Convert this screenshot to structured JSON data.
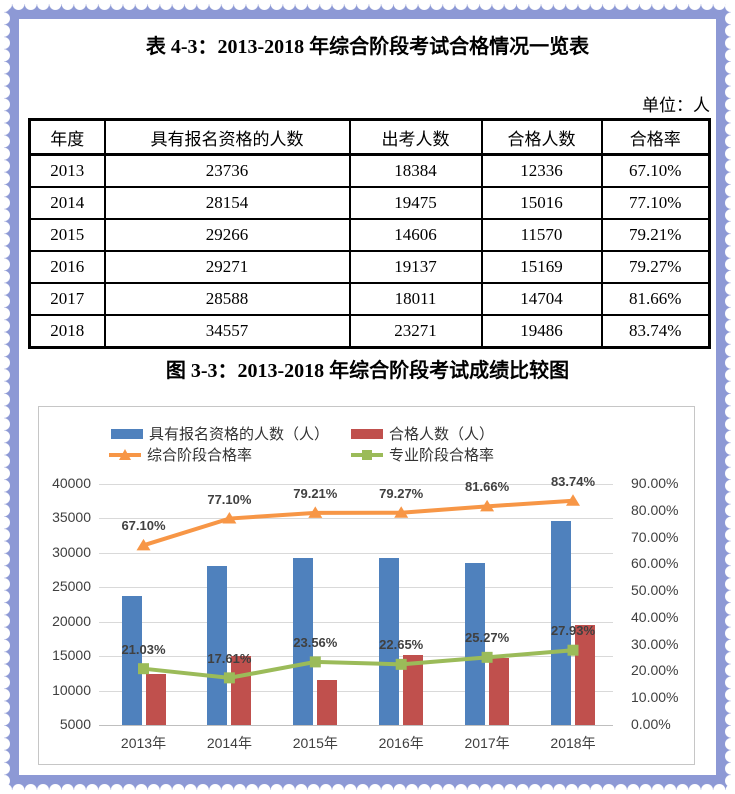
{
  "page": {
    "table_title": "表 4-3：2013-2018 年综合阶段考试合格情况一览表",
    "unit_label": "单位：人",
    "chart_title": "图 3-3：2013-2018 年综合阶段考试成绩比较图",
    "border_color": "#8D99D5"
  },
  "table": {
    "headers": [
      "年度",
      "具有报名资格的人数",
      "出考人数",
      "合格人数",
      "合格率"
    ],
    "rows": [
      [
        "2013",
        "23736",
        "18384",
        "12336",
        "67.10%"
      ],
      [
        "2014",
        "28154",
        "19475",
        "15016",
        "77.10%"
      ],
      [
        "2015",
        "29266",
        "14606",
        "11570",
        "79.21%"
      ],
      [
        "2016",
        "29271",
        "19137",
        "15169",
        "79.27%"
      ],
      [
        "2017",
        "28588",
        "18011",
        "14704",
        "81.66%"
      ],
      [
        "2018",
        "34557",
        "23271",
        "19486",
        "83.74%"
      ]
    ]
  },
  "chart_data": {
    "type": "bar",
    "subtype": "combo bar+line, dual axis",
    "categories": [
      "2013年",
      "2014年",
      "2015年",
      "2016年",
      "2017年",
      "2018年"
    ],
    "series": [
      {
        "name": "具有报名资格的人数（人）",
        "type": "bar",
        "axis": "left",
        "color": "#4F81BD",
        "values": [
          23736,
          28154,
          29266,
          29271,
          28588,
          34557
        ]
      },
      {
        "name": "合格人数（人）",
        "type": "bar",
        "axis": "left",
        "color": "#C0504D",
        "values": [
          12336,
          15016,
          11570,
          15169,
          14704,
          19486
        ]
      },
      {
        "name": "综合阶段合格率",
        "type": "line",
        "marker": "triangle",
        "axis": "right",
        "color": "#F79646",
        "values": [
          67.1,
          77.1,
          79.21,
          79.27,
          81.66,
          83.74
        ],
        "labels": [
          "67.10%",
          "77.10%",
          "79.21%",
          "79.27%",
          "81.66%",
          "83.74%"
        ]
      },
      {
        "name": "专业阶段合格率",
        "type": "line",
        "marker": "square",
        "axis": "right",
        "color": "#9BBB59",
        "values": [
          21.03,
          17.61,
          23.56,
          22.65,
          25.27,
          27.93
        ],
        "labels": [
          "21.03%",
          "17.61%",
          "23.56%",
          "22.65%",
          "25.27%",
          "27.93%"
        ]
      }
    ],
    "left_axis": {
      "min": 5000,
      "max": 40000,
      "step": 5000,
      "ticks": [
        "40000",
        "35000",
        "30000",
        "25000",
        "20000",
        "15000",
        "10000",
        "5000"
      ]
    },
    "right_axis": {
      "min": 0,
      "max": 90,
      "step": 10,
      "ticks": [
        "90.00%",
        "80.00%",
        "70.00%",
        "60.00%",
        "50.00%",
        "40.00%",
        "30.00%",
        "20.00%",
        "10.00%",
        "0.00%"
      ]
    },
    "grid": "horizontal",
    "legend_position": "top",
    "gridline_color": "#D9D9D9"
  }
}
